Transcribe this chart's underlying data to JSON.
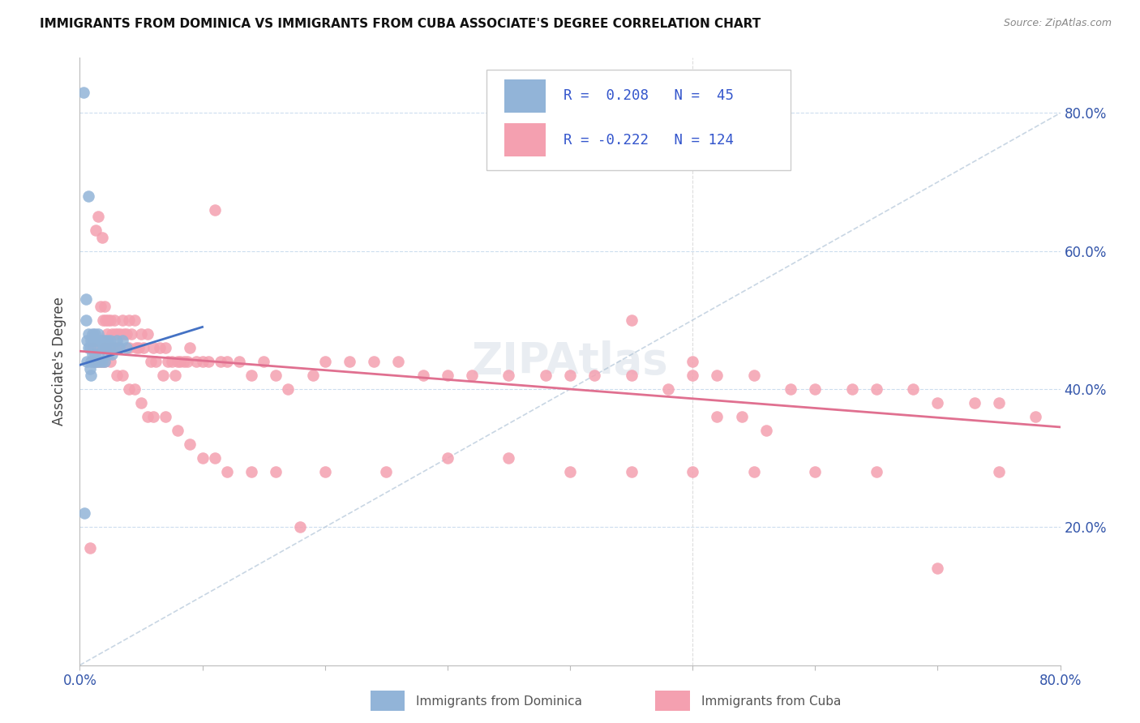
{
  "title": "IMMIGRANTS FROM DOMINICA VS IMMIGRANTS FROM CUBA ASSOCIATE'S DEGREE CORRELATION CHART",
  "source": "Source: ZipAtlas.com",
  "ylabel": "Associate's Degree",
  "xlim": [
    0.0,
    0.8
  ],
  "ylim": [
    0.0,
    0.88
  ],
  "ytick_positions": [
    0.2,
    0.4,
    0.6,
    0.8
  ],
  "ytick_labels": [
    "20.0%",
    "40.0%",
    "60.0%",
    "80.0%"
  ],
  "R_blue": 0.208,
  "N_blue": 45,
  "R_pink": -0.222,
  "N_pink": 124,
  "blue_color": "#92B4D8",
  "pink_color": "#F4A0B0",
  "blue_line_color": "#4472C4",
  "pink_line_color": "#E07090",
  "legend_label_blue": "Immigrants from Dominica",
  "legend_label_pink": "Immigrants from Cuba",
  "blue_x": [
    0.003,
    0.004,
    0.005,
    0.006,
    0.006,
    0.007,
    0.007,
    0.008,
    0.008,
    0.009,
    0.009,
    0.01,
    0.01,
    0.011,
    0.011,
    0.012,
    0.012,
    0.013,
    0.013,
    0.014,
    0.014,
    0.015,
    0.015,
    0.016,
    0.016,
    0.017,
    0.018,
    0.018,
    0.019,
    0.02,
    0.02,
    0.021,
    0.022,
    0.023,
    0.024,
    0.025,
    0.026,
    0.028,
    0.03,
    0.032,
    0.035,
    0.038,
    0.005,
    0.007,
    0.009
  ],
  "blue_y": [
    0.83,
    0.22,
    0.5,
    0.47,
    0.44,
    0.48,
    0.46,
    0.46,
    0.43,
    0.47,
    0.44,
    0.48,
    0.45,
    0.47,
    0.44,
    0.48,
    0.45,
    0.47,
    0.44,
    0.47,
    0.44,
    0.48,
    0.45,
    0.47,
    0.44,
    0.46,
    0.47,
    0.44,
    0.46,
    0.47,
    0.44,
    0.46,
    0.47,
    0.45,
    0.46,
    0.47,
    0.45,
    0.46,
    0.47,
    0.46,
    0.47,
    0.46,
    0.53,
    0.68,
    0.42
  ],
  "pink_x": [
    0.008,
    0.01,
    0.012,
    0.013,
    0.014,
    0.015,
    0.016,
    0.017,
    0.018,
    0.018,
    0.019,
    0.02,
    0.02,
    0.021,
    0.022,
    0.023,
    0.024,
    0.025,
    0.026,
    0.027,
    0.028,
    0.029,
    0.03,
    0.031,
    0.032,
    0.033,
    0.035,
    0.036,
    0.038,
    0.04,
    0.04,
    0.042,
    0.045,
    0.046,
    0.048,
    0.05,
    0.052,
    0.055,
    0.058,
    0.06,
    0.062,
    0.065,
    0.068,
    0.07,
    0.072,
    0.075,
    0.078,
    0.08,
    0.082,
    0.085,
    0.088,
    0.09,
    0.095,
    0.1,
    0.105,
    0.11,
    0.115,
    0.12,
    0.13,
    0.14,
    0.15,
    0.16,
    0.17,
    0.18,
    0.19,
    0.2,
    0.22,
    0.24,
    0.26,
    0.28,
    0.3,
    0.32,
    0.35,
    0.38,
    0.4,
    0.42,
    0.45,
    0.48,
    0.5,
    0.52,
    0.55,
    0.58,
    0.6,
    0.63,
    0.65,
    0.68,
    0.7,
    0.73,
    0.75,
    0.78,
    0.02,
    0.025,
    0.03,
    0.035,
    0.04,
    0.045,
    0.05,
    0.055,
    0.06,
    0.07,
    0.08,
    0.09,
    0.1,
    0.11,
    0.12,
    0.14,
    0.16,
    0.2,
    0.25,
    0.3,
    0.35,
    0.4,
    0.45,
    0.5,
    0.55,
    0.6,
    0.65,
    0.7,
    0.75,
    0.45,
    0.5,
    0.52,
    0.54,
    0.56
  ],
  "pink_y": [
    0.17,
    0.46,
    0.44,
    0.63,
    0.44,
    0.65,
    0.44,
    0.52,
    0.62,
    0.44,
    0.5,
    0.52,
    0.44,
    0.5,
    0.48,
    0.5,
    0.46,
    0.5,
    0.48,
    0.46,
    0.5,
    0.48,
    0.46,
    0.48,
    0.46,
    0.48,
    0.5,
    0.48,
    0.48,
    0.5,
    0.46,
    0.48,
    0.5,
    0.46,
    0.46,
    0.48,
    0.46,
    0.48,
    0.44,
    0.46,
    0.44,
    0.46,
    0.42,
    0.46,
    0.44,
    0.44,
    0.42,
    0.44,
    0.44,
    0.44,
    0.44,
    0.46,
    0.44,
    0.44,
    0.44,
    0.66,
    0.44,
    0.44,
    0.44,
    0.42,
    0.44,
    0.42,
    0.4,
    0.2,
    0.42,
    0.44,
    0.44,
    0.44,
    0.44,
    0.42,
    0.42,
    0.42,
    0.42,
    0.42,
    0.42,
    0.42,
    0.42,
    0.4,
    0.42,
    0.42,
    0.42,
    0.4,
    0.4,
    0.4,
    0.4,
    0.4,
    0.38,
    0.38,
    0.38,
    0.36,
    0.46,
    0.44,
    0.42,
    0.42,
    0.4,
    0.4,
    0.38,
    0.36,
    0.36,
    0.36,
    0.34,
    0.32,
    0.3,
    0.3,
    0.28,
    0.28,
    0.28,
    0.28,
    0.28,
    0.3,
    0.3,
    0.28,
    0.28,
    0.28,
    0.28,
    0.28,
    0.28,
    0.14,
    0.28,
    0.5,
    0.44,
    0.36,
    0.36,
    0.34
  ]
}
